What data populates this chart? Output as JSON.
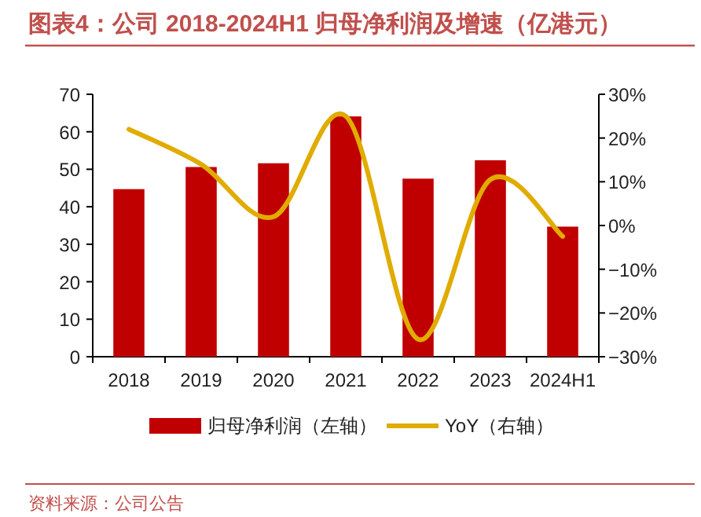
{
  "chart_data": {
    "type": "bar",
    "title": "图表4：公司 2018-2024H1 归母净利润及增速（亿港元）",
    "categories": [
      "2018",
      "2019",
      "2020",
      "2021",
      "2022",
      "2023",
      "2024H1"
    ],
    "series": [
      {
        "name": "归母净利润（左轴）",
        "color": "#c00000",
        "values": [
          44.7,
          50.6,
          51.6,
          64.1,
          47.5,
          52.4,
          34.7
        ]
      },
      {
        "name": "YoY（右轴）",
        "type": "line",
        "axis": "y2",
        "color": "#e0ac00",
        "values": [
          22,
          14,
          2,
          25,
          -26,
          10.5,
          -2.5
        ]
      }
    ],
    "ylim": [
      0,
      70
    ],
    "yticks": [
      0,
      10,
      20,
      30,
      40,
      50,
      60,
      70
    ],
    "y2lim": [
      -30,
      30
    ],
    "y2ticks": [
      {
        "value": -30,
        "label": "−30%"
      },
      {
        "value": -20,
        "label": "−20%"
      },
      {
        "value": -10,
        "label": "−10%"
      },
      {
        "value": 0,
        "label": "0%"
      },
      {
        "value": 10,
        "label": "10%"
      },
      {
        "value": 20,
        "label": "20%"
      },
      {
        "value": 30,
        "label": "30%"
      }
    ],
    "legend": "bottom",
    "grid": false,
    "annotations": [
      "资料来源：公司公告"
    ]
  }
}
